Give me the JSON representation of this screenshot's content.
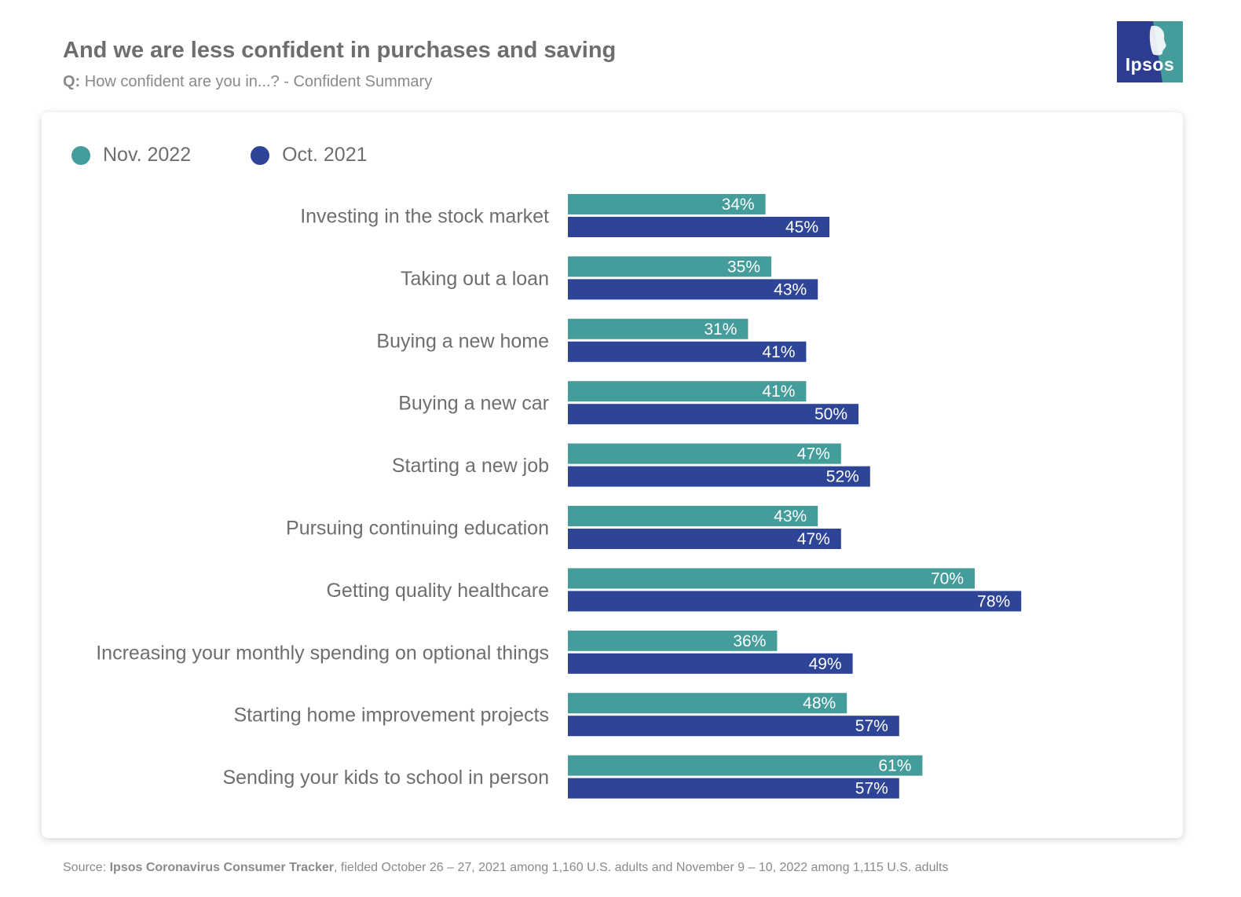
{
  "header": {
    "title": "And we are less confident in purchases and saving",
    "subtitle_prefix": "Q:",
    "subtitle": "How confident are you in...? - Confident Summary"
  },
  "logo": {
    "text": "Ipsos",
    "color_primary": "#2e3d8f",
    "color_secondary": "#449c9b"
  },
  "footer": {
    "source_prefix": "Source: ",
    "source_bold": "Ipsos Coronavirus Consumer Tracker",
    "source_rest": ", fielded October 26 – 27, 2021 among 1,160 U.S. adults and November 9 – 10, 2022 among 1,115 U.S. adults"
  },
  "legend": {
    "placement": "top-left"
  },
  "chart_data": {
    "type": "bar",
    "orientation": "horizontal",
    "value_suffix": "%",
    "xlim": [
      0,
      100
    ],
    "grid": false,
    "categories": [
      "Investing in the stock market",
      "Taking out a loan",
      "Buying a new home",
      "Buying a new car",
      "Starting a new job",
      "Pursuing continuing education",
      "Getting quality healthcare",
      "Increasing your monthly spending on optional things",
      "Starting home improvement projects",
      "Sending your kids to school in person"
    ],
    "series": [
      {
        "name": "Nov. 2022",
        "color": "#449c9b",
        "values": [
          34,
          35,
          31,
          41,
          47,
          43,
          70,
          36,
          48,
          61
        ]
      },
      {
        "name": "Oct. 2021",
        "color": "#2e4496",
        "values": [
          45,
          43,
          41,
          50,
          52,
          47,
          78,
          49,
          57,
          57
        ]
      }
    ]
  }
}
